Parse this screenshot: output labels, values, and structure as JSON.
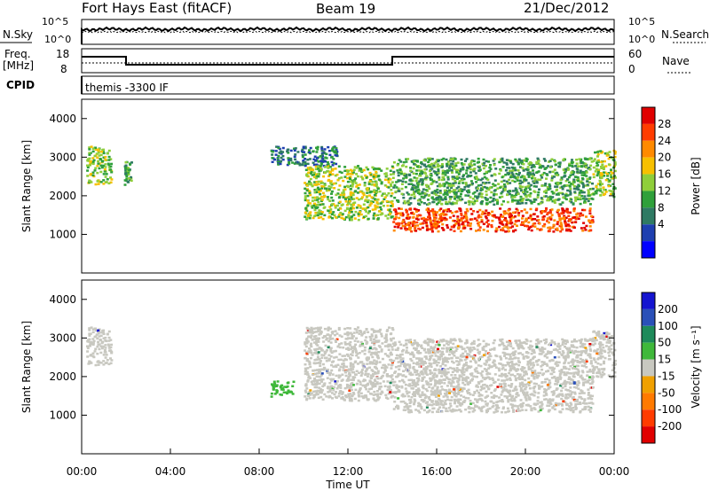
{
  "header": {
    "station": "Fort Hays East (fitACF)",
    "beam": "Beam 19",
    "date": "21/Dec/2012"
  },
  "noise_panel": {
    "left_label": "N.Sky",
    "right_label": "N.Search",
    "left_ticks": [
      "10^5",
      "10^0"
    ],
    "right_ticks": [
      "10^5",
      "10^0"
    ]
  },
  "freq_panel": {
    "left_label_line1": "Freq.",
    "left_label_line2": "[MHz]",
    "right_label": "Nave",
    "left_ticks": [
      "18",
      "8"
    ],
    "right_ticks": [
      "60",
      "0"
    ]
  },
  "cpid_panel": {
    "label": "CPID",
    "program": "themis -3300 IF"
  },
  "power_panel": {
    "ylabel": "Slant Range [km]",
    "yticks": [
      "4000",
      "3000",
      "2000",
      "1000"
    ],
    "colorbar_label": "Power [dB]",
    "colorbar_ticks": [
      "28",
      "24",
      "20",
      "16",
      "12",
      "8",
      "4"
    ],
    "colors": [
      "#0000ff",
      "#1e3fb0",
      "#2f7a63",
      "#2fa03a",
      "#8fce3a",
      "#f7c000",
      "#ff8a00",
      "#ff3c00",
      "#e00000"
    ]
  },
  "velocity_panel": {
    "ylabel": "Slant Range [km]",
    "yticks": [
      "4000",
      "3000",
      "2000",
      "1000"
    ],
    "colorbar_label": "Velocity [m s⁻¹]",
    "colorbar_ticks": [
      "200",
      "100",
      "50",
      "15",
      "-15",
      "-50",
      "-100",
      "-200"
    ],
    "colors": [
      "#1414d0",
      "#2a50b8",
      "#1e8a5a",
      "#3fb83a",
      "#c8c8c0",
      "#f0a000",
      "#ff7a00",
      "#ff3c00",
      "#e00000"
    ]
  },
  "x_axis": {
    "label": "Time UT",
    "ticks": [
      "00:00",
      "04:00",
      "08:00",
      "12:00",
      "16:00",
      "20:00",
      "00:00"
    ]
  },
  "chart_data": {
    "type": "heatmap",
    "title": "Fort Hays East (fitACF)  Beam 19  21/Dec/2012",
    "xlabel": "Time UT",
    "ylabel": "Slant Range [km]",
    "xlim": [
      0,
      24
    ],
    "ylim": [
      0,
      4500
    ],
    "frequency_mhz": [
      {
        "start": 0,
        "end": 2,
        "value": 14
      },
      {
        "start": 2,
        "end": 14,
        "value": 10
      },
      {
        "start": 14,
        "end": 24,
        "value": 14
      }
    ],
    "power_regions": [
      {
        "t0": 0.2,
        "t1": 1.3,
        "r0": 2300,
        "r1": 3300,
        "power_db": 14
      },
      {
        "t0": 1.9,
        "t1": 2.2,
        "r0": 2300,
        "r1": 2900,
        "power_db": 12
      },
      {
        "t0": 8.5,
        "t1": 11.5,
        "r0": 2800,
        "r1": 3300,
        "power_db": 8
      },
      {
        "t0": 10.0,
        "t1": 14.0,
        "r0": 1400,
        "r1": 2800,
        "power_db": 16
      },
      {
        "t0": 14.0,
        "t1": 23.0,
        "r0": 1100,
        "r1": 1700,
        "power_db": 28
      },
      {
        "t0": 14.0,
        "t1": 23.0,
        "r0": 1800,
        "r1": 3000,
        "power_db": 12
      },
      {
        "t0": 23.0,
        "t1": 24.0,
        "r0": 2000,
        "r1": 3200,
        "power_db": 16
      }
    ],
    "velocity_regions": [
      {
        "t0": 0.2,
        "t1": 1.3,
        "r0": 2300,
        "r1": 3300,
        "velocity": 0
      },
      {
        "t0": 8.5,
        "t1": 9.5,
        "r0": 1500,
        "r1": 1900,
        "velocity": 50
      },
      {
        "t0": 10.0,
        "t1": 14.0,
        "r0": 1400,
        "r1": 3300,
        "velocity": 0
      },
      {
        "t0": 14.0,
        "t1": 23.0,
        "r0": 1100,
        "r1": 3000,
        "velocity": 0
      },
      {
        "t0": 23.0,
        "t1": 24.0,
        "r0": 2000,
        "r1": 3200,
        "velocity": 0
      }
    ]
  }
}
